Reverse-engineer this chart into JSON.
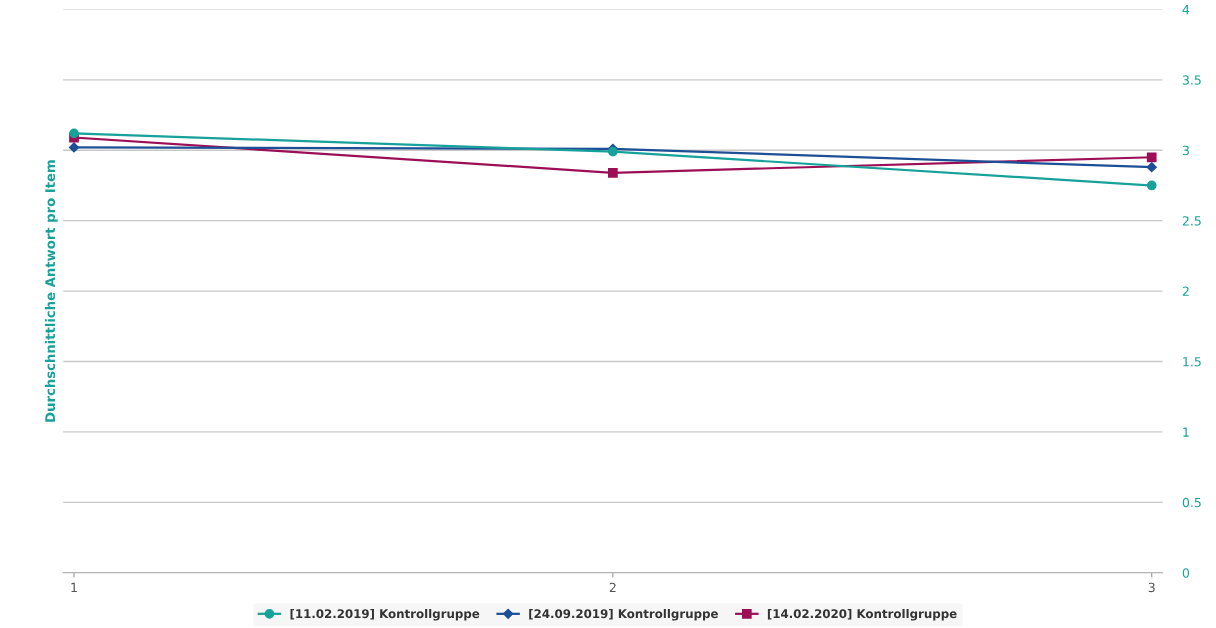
{
  "chart_data": {
    "type": "line",
    "ylabel": "Durchschnittliche Antwort pro Item",
    "x": [
      1,
      2,
      3
    ],
    "xlim": [
      0.98,
      3.02
    ],
    "xticks": [
      1,
      2,
      3
    ],
    "ylim": [
      0,
      4
    ],
    "yticks": [
      0,
      0.5,
      1,
      1.5,
      2,
      2.5,
      3,
      3.5,
      4
    ],
    "grid": "y",
    "legend": "bottom",
    "series": [
      {
        "name": "[11.02.2019] Kontrollgruppe",
        "color": "#17a19b",
        "marker": "circle",
        "values": [
          3.12,
          2.99,
          2.75
        ]
      },
      {
        "name": "[24.09.2019] Kontrollgruppe",
        "color": "#1c4f96",
        "marker": "diamond",
        "values": [
          3.02,
          3.01,
          2.88
        ]
      },
      {
        "name": "[14.02.2020] Kontrollgruppe",
        "color": "#9c0f57",
        "marker": "square",
        "values": [
          3.09,
          2.84,
          2.95
        ]
      }
    ]
  }
}
